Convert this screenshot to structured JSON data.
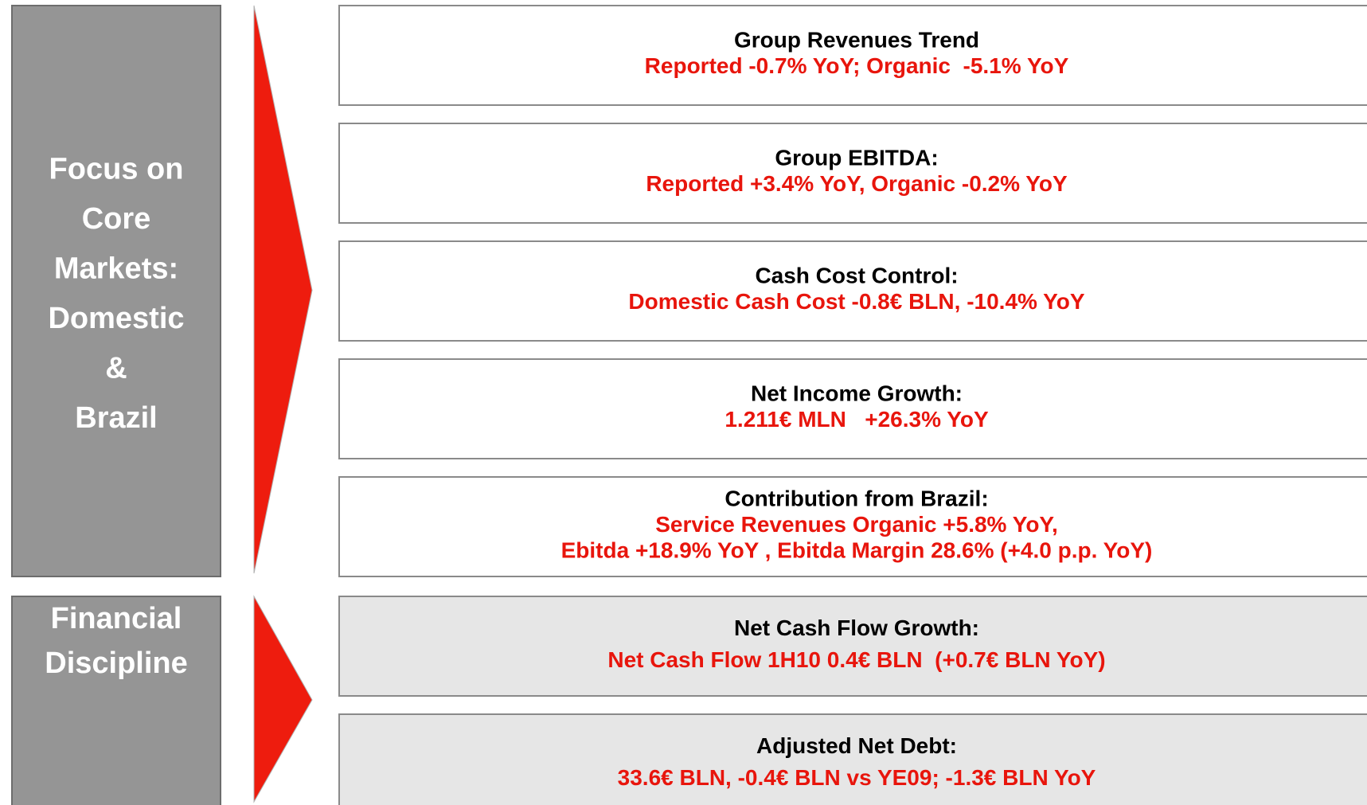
{
  "groups": [
    {
      "label_lines": [
        "Focus on",
        "Core",
        "Markets:",
        "Domestic",
        "&",
        "Brazil"
      ],
      "items": [
        {
          "title": "Group Revenues Trend",
          "lines": [
            "Reported -0.7% YoY; Organic  -5.1% YoY"
          ]
        },
        {
          "title": "Group EBITDA:",
          "lines": [
            "Reported +3.4% YoY, Organic -0.2% YoY"
          ]
        },
        {
          "title": "Cash Cost Control:",
          "lines": [
            "Domestic Cash Cost -0.8€ BLN, -10.4% YoY"
          ]
        },
        {
          "title": "Net Income Growth:",
          "lines": [
            "1.211€ MLN   +26.3% YoY"
          ]
        },
        {
          "title": "Contribution from Brazil:",
          "lines": [
            "Service Revenues Organic +5.8% YoY,",
            "Ebitda +18.9% YoY , Ebitda Margin 28.6% (+4.0 p.p. YoY)"
          ]
        }
      ]
    },
    {
      "label_lines": [
        "Financial",
        "Discipline"
      ],
      "items": [
        {
          "title": "Net Cash Flow Growth:",
          "lines": [
            "Net Cash Flow 1H10 0.4€ BLN  (+0.7€ BLN YoY)"
          ]
        },
        {
          "title": "Adjusted Net Debt:",
          "lines": [
            "33.6€ BLN, -0.4€ BLN vs YE09; -1.3€ BLN YoY"
          ]
        }
      ]
    }
  ]
}
